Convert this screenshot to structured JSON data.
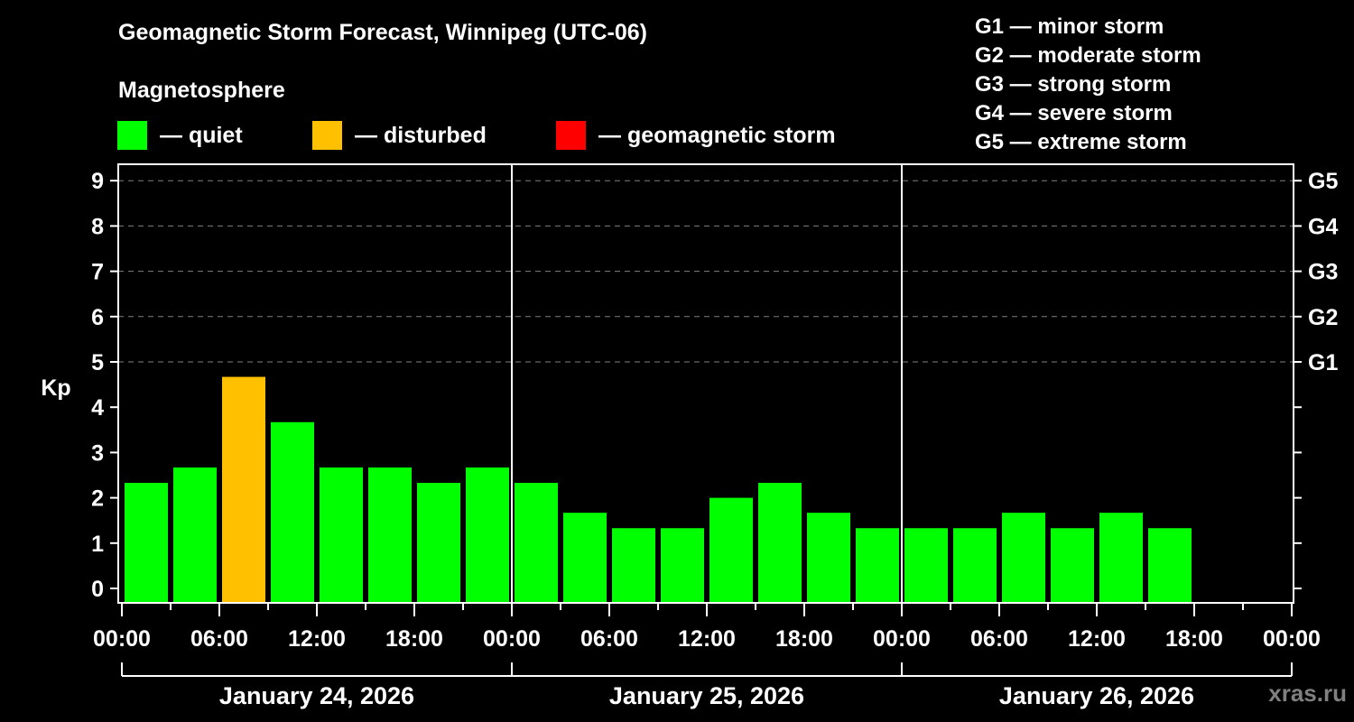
{
  "header": {
    "title": "Geomagnetic Storm Forecast, Winnipeg (UTC-06)",
    "subtitle": "Magnetosphere"
  },
  "legend": [
    {
      "label": "— quiet",
      "color": "#00ff00"
    },
    {
      "label": "— disturbed",
      "color": "#ffc000"
    },
    {
      "label": "— geomagnetic storm",
      "color": "#ff0000"
    }
  ],
  "g_scale": [
    "G1 — minor storm",
    "G2 — moderate storm",
    "G3 — strong storm",
    "G4 — severe storm",
    "G5 — extreme storm"
  ],
  "watermark": "xras.ru",
  "colors": {
    "quiet": "#00ff00",
    "disturbed": "#ffc000",
    "storm": "#ff0000",
    "grid": "#808080",
    "axis": "#ffffff",
    "background": "#000000"
  },
  "chart_data": {
    "type": "bar",
    "title": "Geomagnetic Storm Forecast, Winnipeg (UTC-06)",
    "xlabel": "",
    "ylabel": "Kp",
    "ylim": [
      0,
      9
    ],
    "yticks": [
      0,
      1,
      2,
      3,
      4,
      5,
      6,
      7,
      8,
      9
    ],
    "right_axis_labels": [
      {
        "kp": 5,
        "label": "G1"
      },
      {
        "kp": 6,
        "label": "G2"
      },
      {
        "kp": 7,
        "label": "G3"
      },
      {
        "kp": 8,
        "label": "G4"
      },
      {
        "kp": 9,
        "label": "G5"
      }
    ],
    "grid": "dashed horizontal lines at Kp 5–9",
    "xtick_labels": [
      "00:00",
      "06:00",
      "12:00",
      "18:00",
      "00:00",
      "06:00",
      "12:00",
      "18:00",
      "00:00",
      "06:00",
      "12:00",
      "18:00",
      "00:00"
    ],
    "days": [
      "January 24, 2026",
      "January 25, 2026",
      "January 26, 2026"
    ],
    "interval_hours": 3,
    "categories": [
      "Jan 24 00:00",
      "Jan 24 03:00",
      "Jan 24 06:00",
      "Jan 24 09:00",
      "Jan 24 12:00",
      "Jan 24 15:00",
      "Jan 24 18:00",
      "Jan 24 21:00",
      "Jan 25 00:00",
      "Jan 25 03:00",
      "Jan 25 06:00",
      "Jan 25 09:00",
      "Jan 25 12:00",
      "Jan 25 15:00",
      "Jan 25 18:00",
      "Jan 25 21:00",
      "Jan 26 00:00",
      "Jan 26 03:00",
      "Jan 26 06:00",
      "Jan 26 09:00",
      "Jan 26 12:00",
      "Jan 26 15:00"
    ],
    "values": [
      2.33,
      2.67,
      4.67,
      3.67,
      2.67,
      2.67,
      2.33,
      2.67,
      2.33,
      1.67,
      1.33,
      1.33,
      2.0,
      2.33,
      1.67,
      1.33,
      1.33,
      1.33,
      1.67,
      1.33,
      1.67,
      1.33
    ],
    "status": [
      "quiet",
      "quiet",
      "disturbed",
      "quiet",
      "quiet",
      "quiet",
      "quiet",
      "quiet",
      "quiet",
      "quiet",
      "quiet",
      "quiet",
      "quiet",
      "quiet",
      "quiet",
      "quiet",
      "quiet",
      "quiet",
      "quiet",
      "quiet",
      "quiet",
      "quiet"
    ],
    "legend": [
      "quiet",
      "disturbed",
      "geomagnetic storm"
    ]
  }
}
